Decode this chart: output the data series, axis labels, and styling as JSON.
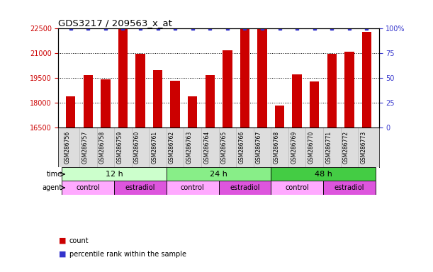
{
  "title": "GDS3217 / 209563_x_at",
  "samples": [
    "GSM286756",
    "GSM286757",
    "GSM286758",
    "GSM286759",
    "GSM286760",
    "GSM286761",
    "GSM286762",
    "GSM286763",
    "GSM286764",
    "GSM286765",
    "GSM286766",
    "GSM286767",
    "GSM286768",
    "GSM286769",
    "GSM286770",
    "GSM286771",
    "GSM286772",
    "GSM286773"
  ],
  "counts": [
    18400,
    19700,
    19450,
    22450,
    20950,
    20000,
    19350,
    18400,
    19700,
    21200,
    22480,
    22480,
    17850,
    19750,
    19300,
    20950,
    21100,
    22300
  ],
  "percentiles": [
    100,
    100,
    100,
    100,
    100,
    100,
    100,
    100,
    100,
    100,
    100,
    100,
    100,
    100,
    100,
    100,
    100,
    100
  ],
  "ylim_left": [
    16500,
    22500
  ],
  "ylim_right": [
    0,
    100
  ],
  "yticks_left": [
    16500,
    18000,
    19500,
    21000,
    22500
  ],
  "yticks_right": [
    0,
    25,
    50,
    75,
    100
  ],
  "bar_color": "#cc0000",
  "dot_color": "#3333cc",
  "background_color": "#ffffff",
  "time_groups": [
    {
      "label": "12 h",
      "start": 0,
      "end": 6,
      "color": "#ccffcc"
    },
    {
      "label": "24 h",
      "start": 6,
      "end": 12,
      "color": "#88ee88"
    },
    {
      "label": "48 h",
      "start": 12,
      "end": 18,
      "color": "#44cc44"
    }
  ],
  "agent_groups": [
    {
      "label": "control",
      "start": 0,
      "end": 3,
      "color": "#ffaaff"
    },
    {
      "label": "estradiol",
      "start": 3,
      "end": 6,
      "color": "#dd55dd"
    },
    {
      "label": "control",
      "start": 6,
      "end": 9,
      "color": "#ffaaff"
    },
    {
      "label": "estradiol",
      "start": 9,
      "end": 12,
      "color": "#dd55dd"
    },
    {
      "label": "control",
      "start": 12,
      "end": 15,
      "color": "#ffaaff"
    },
    {
      "label": "estradiol",
      "start": 15,
      "end": 18,
      "color": "#dd55dd"
    }
  ],
  "legend_count_color": "#cc0000",
  "legend_dot_color": "#3333cc",
  "bar_width": 0.55,
  "label_band_color": "#dddddd"
}
